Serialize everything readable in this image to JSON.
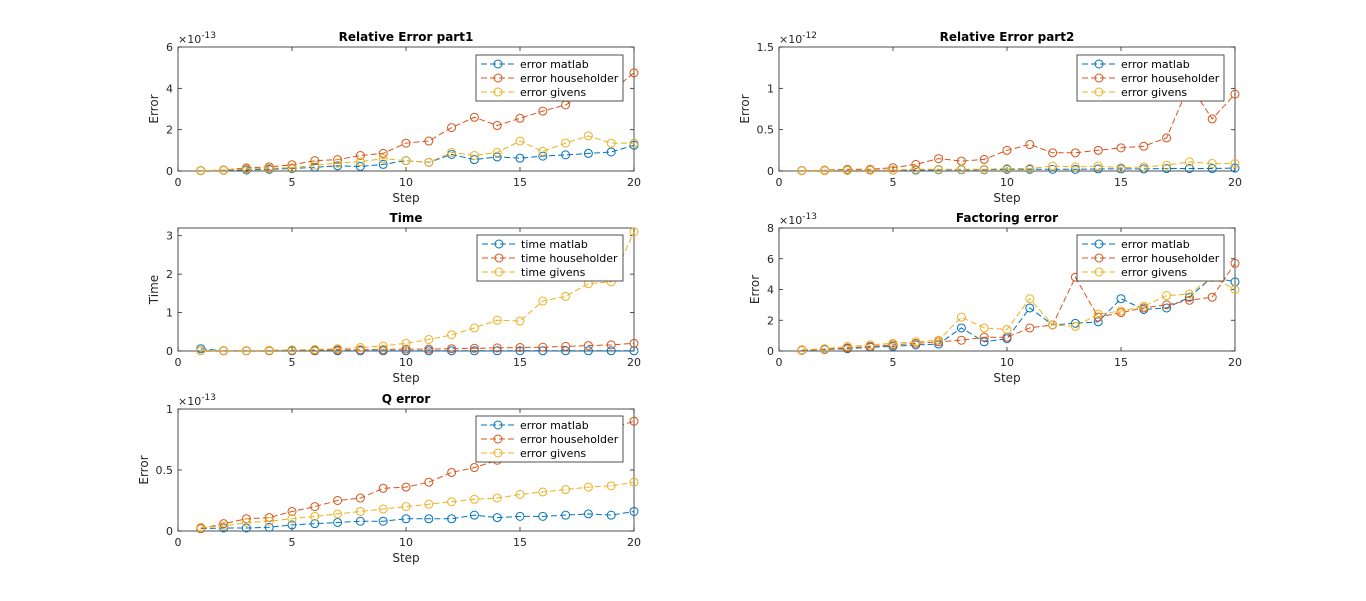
{
  "colors": {
    "matlab": "#0072BD",
    "householder": "#D95319",
    "givens": "#EDB120"
  },
  "chart_data": [
    {
      "type": "line",
      "title": "Relative Error part1",
      "xlabel": "Step",
      "ylabel": "Error",
      "exponent": "-13",
      "xlim": [
        0,
        20
      ],
      "ylim": [
        0,
        6
      ],
      "xticks": [
        "0",
        "5",
        "10",
        "15",
        "20"
      ],
      "yticks": [
        "0",
        "2",
        "4",
        "6"
      ],
      "legend_position": "top-right",
      "x": [
        1,
        2,
        3,
        4,
        5,
        6,
        7,
        8,
        9,
        10,
        11,
        12,
        13,
        14,
        15,
        16,
        17,
        18,
        19,
        20
      ],
      "series": [
        {
          "name": "error matlab",
          "color_key": "matlab",
          "values": [
            0.02,
            0.03,
            0.05,
            0.08,
            0.12,
            0.18,
            0.25,
            0.22,
            0.32,
            0.5,
            0.42,
            0.8,
            0.55,
            0.68,
            0.62,
            0.72,
            0.78,
            0.85,
            0.92,
            1.25
          ]
        },
        {
          "name": "error householder",
          "color_key": "householder",
          "values": [
            0.02,
            0.05,
            0.15,
            0.2,
            0.3,
            0.5,
            0.55,
            0.75,
            0.85,
            1.35,
            1.45,
            2.1,
            2.6,
            2.2,
            2.55,
            2.9,
            3.2,
            3.8,
            3.85,
            4.75
          ]
        },
        {
          "name": "error givens",
          "color_key": "givens",
          "values": [
            0.01,
            0.04,
            0.1,
            0.13,
            0.16,
            0.28,
            0.38,
            0.45,
            0.6,
            0.5,
            0.42,
            0.9,
            0.75,
            0.9,
            1.45,
            0.95,
            1.35,
            1.7,
            1.35,
            1.35
          ]
        }
      ]
    },
    {
      "type": "line",
      "title": "Relative Error part2",
      "xlabel": "Step",
      "ylabel": "Error",
      "exponent": "-12",
      "xlim": [
        0,
        20
      ],
      "ylim": [
        0,
        1.5
      ],
      "xticks": [
        "0",
        "5",
        "10",
        "15",
        "20"
      ],
      "yticks": [
        "0",
        "0.5",
        "1",
        "1.5"
      ],
      "legend_position": "top-right",
      "x": [
        1,
        2,
        3,
        4,
        5,
        6,
        7,
        8,
        9,
        10,
        11,
        12,
        13,
        14,
        15,
        16,
        17,
        18,
        19,
        20
      ],
      "series": [
        {
          "name": "error matlab",
          "color_key": "matlab",
          "values": [
            0.005,
            0.005,
            0.008,
            0.01,
            0.01,
            0.012,
            0.015,
            0.015,
            0.015,
            0.02,
            0.02,
            0.02,
            0.02,
            0.025,
            0.025,
            0.025,
            0.03,
            0.03,
            0.03,
            0.035
          ]
        },
        {
          "name": "error householder",
          "color_key": "householder",
          "values": [
            0.005,
            0.01,
            0.02,
            0.02,
            0.04,
            0.08,
            0.15,
            0.12,
            0.14,
            0.25,
            0.32,
            0.22,
            0.22,
            0.25,
            0.28,
            0.3,
            0.4,
            1.05,
            0.63,
            0.93
          ]
        },
        {
          "name": "error givens",
          "color_key": "givens",
          "values": [
            0.003,
            0.005,
            0.01,
            0.01,
            0.01,
            0.02,
            0.02,
            0.02,
            0.02,
            0.03,
            0.03,
            0.06,
            0.05,
            0.06,
            0.04,
            0.05,
            0.07,
            0.11,
            0.09,
            0.09
          ]
        }
      ]
    },
    {
      "type": "line",
      "title": "Time",
      "xlabel": "Step",
      "ylabel": "Time",
      "exponent": "",
      "xlim": [
        0,
        20
      ],
      "ylim": [
        0,
        3.2
      ],
      "xticks": [
        "0",
        "5",
        "10",
        "15",
        "20"
      ],
      "yticks": [
        "0",
        "1",
        "2",
        "3"
      ],
      "legend_position": "top-right",
      "x": [
        1,
        2,
        3,
        4,
        5,
        6,
        7,
        8,
        9,
        10,
        11,
        12,
        13,
        14,
        15,
        16,
        17,
        18,
        19,
        20
      ],
      "series": [
        {
          "name": "time matlab",
          "color_key": "matlab",
          "values": [
            0.06,
            0.005,
            0.005,
            0.005,
            0.005,
            0.005,
            0.005,
            0.005,
            0.005,
            0.005,
            0.005,
            0.005,
            0.005,
            0.005,
            0.005,
            0.005,
            0.005,
            0.005,
            0.005,
            0.005
          ]
        },
        {
          "name": "time householder",
          "color_key": "householder",
          "values": [
            0.01,
            0.01,
            0.01,
            0.01,
            0.02,
            0.02,
            0.03,
            0.03,
            0.04,
            0.05,
            0.05,
            0.06,
            0.07,
            0.08,
            0.09,
            0.1,
            0.12,
            0.14,
            0.16,
            0.2
          ]
        },
        {
          "name": "time givens",
          "color_key": "givens",
          "values": [
            0.01,
            0.01,
            0.01,
            0.02,
            0.03,
            0.04,
            0.06,
            0.09,
            0.13,
            0.2,
            0.3,
            0.42,
            0.6,
            0.8,
            0.78,
            1.3,
            1.42,
            1.75,
            1.8,
            3.1
          ]
        }
      ]
    },
    {
      "type": "line",
      "title": "Factoring error",
      "xlabel": "Step",
      "ylabel": "Error",
      "exponent": "-13",
      "xlim": [
        0,
        20
      ],
      "ylim": [
        0,
        8
      ],
      "xticks": [
        "0",
        "5",
        "10",
        "15",
        "20"
      ],
      "yticks": [
        "0",
        "2",
        "4",
        "6",
        "8"
      ],
      "legend_position": "top-right",
      "x": [
        1,
        2,
        3,
        4,
        5,
        6,
        7,
        8,
        9,
        10,
        11,
        12,
        13,
        14,
        15,
        16,
        17,
        18,
        19,
        20
      ],
      "series": [
        {
          "name": "error matlab",
          "color_key": "matlab",
          "values": [
            0.05,
            0.1,
            0.15,
            0.25,
            0.3,
            0.4,
            0.45,
            1.5,
            0.6,
            0.8,
            2.8,
            1.7,
            1.8,
            1.9,
            3.4,
            2.7,
            2.8,
            3.5,
            4.8,
            4.5
          ]
        },
        {
          "name": "error householder",
          "color_key": "householder",
          "values": [
            0.05,
            0.12,
            0.2,
            0.3,
            0.4,
            0.5,
            0.6,
            0.7,
            0.9,
            0.9,
            1.5,
            1.7,
            4.8,
            2.2,
            2.5,
            2.8,
            3.0,
            3.3,
            3.5,
            5.7
          ]
        },
        {
          "name": "error givens",
          "color_key": "givens",
          "values": [
            0.08,
            0.15,
            0.3,
            0.4,
            0.5,
            0.6,
            0.7,
            2.2,
            1.5,
            1.4,
            3.4,
            1.7,
            1.6,
            2.4,
            2.6,
            2.9,
            3.6,
            3.7,
            4.8,
            4.0
          ]
        }
      ]
    },
    {
      "type": "line",
      "title": "Q error",
      "xlabel": "Step",
      "ylabel": "Error",
      "exponent": "-13",
      "xlim": [
        0,
        20
      ],
      "ylim": [
        0,
        1
      ],
      "xticks": [
        "0",
        "5",
        "10",
        "15",
        "20"
      ],
      "yticks": [
        "0",
        "0.5",
        "1"
      ],
      "legend_position": "top-right",
      "x": [
        1,
        2,
        3,
        4,
        5,
        6,
        7,
        8,
        9,
        10,
        11,
        12,
        13,
        14,
        15,
        16,
        17,
        18,
        19,
        20
      ],
      "series": [
        {
          "name": "error matlab",
          "color_key": "matlab",
          "values": [
            0.02,
            0.025,
            0.025,
            0.03,
            0.05,
            0.06,
            0.07,
            0.08,
            0.08,
            0.1,
            0.1,
            0.1,
            0.13,
            0.11,
            0.12,
            0.12,
            0.13,
            0.14,
            0.13,
            0.16
          ]
        },
        {
          "name": "error householder",
          "color_key": "householder",
          "values": [
            0.02,
            0.06,
            0.1,
            0.11,
            0.16,
            0.2,
            0.25,
            0.27,
            0.35,
            0.36,
            0.4,
            0.48,
            0.52,
            0.58,
            0.62,
            0.68,
            0.74,
            0.8,
            0.84,
            0.9
          ]
        },
        {
          "name": "error givens",
          "color_key": "givens",
          "values": [
            0.03,
            0.04,
            0.07,
            0.08,
            0.1,
            0.12,
            0.14,
            0.16,
            0.18,
            0.2,
            0.22,
            0.24,
            0.26,
            0.27,
            0.3,
            0.32,
            0.34,
            0.36,
            0.37,
            0.4
          ]
        }
      ]
    }
  ]
}
